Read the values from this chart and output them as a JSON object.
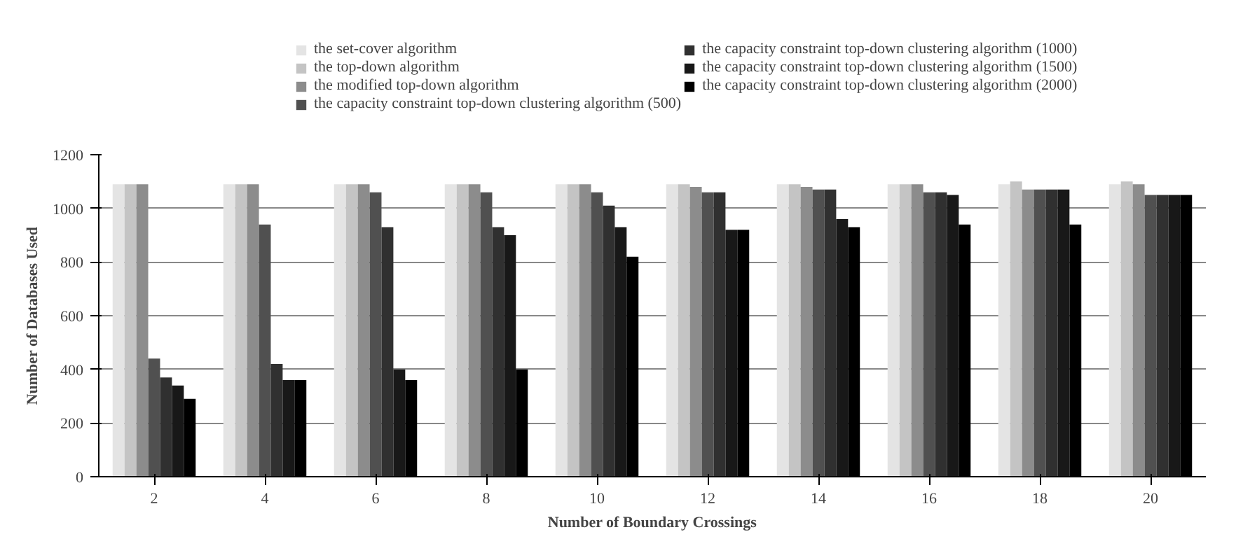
{
  "chart_data": {
    "type": "bar",
    "xlabel": "Number of Boundary Crossings",
    "ylabel": "Number of Databases Used",
    "categories": [
      "2",
      "4",
      "6",
      "8",
      "10",
      "12",
      "14",
      "16",
      "18",
      "20"
    ],
    "series": [
      {
        "name": "the set-cover algorithm",
        "color": "#e4e4e4",
        "values": [
          1090,
          1090,
          1090,
          1090,
          1090,
          1090,
          1090,
          1090,
          1090,
          1090
        ]
      },
      {
        "name": "the top-down algorithm",
        "color": "#c4c4c4",
        "values": [
          1090,
          1090,
          1090,
          1090,
          1090,
          1090,
          1090,
          1090,
          1100,
          1100
        ]
      },
      {
        "name": "the modified top-down algorithm",
        "color": "#8c8c8c",
        "values": [
          1090,
          1090,
          1090,
          1090,
          1090,
          1080,
          1080,
          1090,
          1070,
          1090
        ]
      },
      {
        "name": "the capacity constraint top-down clustering algorithm (500)",
        "color": "#505050",
        "values": [
          440,
          940,
          1060,
          1060,
          1060,
          1060,
          1070,
          1060,
          1070,
          1050
        ]
      },
      {
        "name": "the capacity constraint top-down clustering algorithm (1000)",
        "color": "#303030",
        "values": [
          370,
          420,
          930,
          930,
          1010,
          1060,
          1070,
          1060,
          1070,
          1050
        ]
      },
      {
        "name": "the capacity constraint top-down clustering algorithm (1500)",
        "color": "#181818",
        "values": [
          340,
          360,
          400,
          900,
          930,
          920,
          960,
          1050,
          1070,
          1050
        ]
      },
      {
        "name": "the capacity constraint top-down clustering algorithm (2000)",
        "color": "#000000",
        "values": [
          290,
          360,
          360,
          400,
          820,
          920,
          930,
          940,
          940,
          1050
        ]
      }
    ],
    "ylim": [
      0,
      1200
    ],
    "yticks": [
      0,
      200,
      400,
      600,
      800,
      1000,
      1200
    ],
    "grid": "y",
    "legend": "top"
  }
}
